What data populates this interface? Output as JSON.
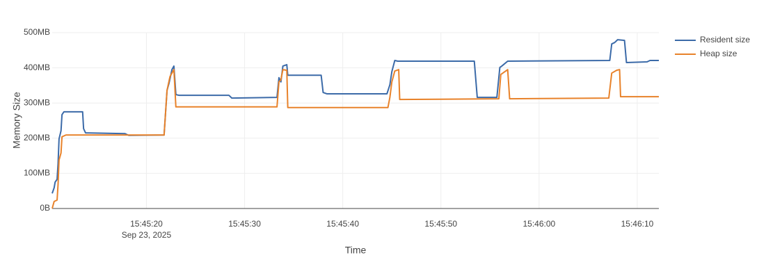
{
  "chart_data": {
    "type": "line",
    "x_label": "Time",
    "y_label": "Memory Size",
    "x_date_label": "Sep 23, 2025",
    "xlim": [
      "15:45:10.4",
      "15:46:12.2"
    ],
    "xticks": [
      "15:45:20",
      "15:45:30",
      "15:45:40",
      "15:45:50",
      "15:46:00",
      "15:46:10"
    ],
    "ylim": [
      0,
      500
    ],
    "yticks": [
      {
        "value": 0,
        "label": "0B"
      },
      {
        "value": 100,
        "label": "100MB"
      },
      {
        "value": 200,
        "label": "200MB"
      },
      {
        "value": 300,
        "label": "300MB"
      },
      {
        "value": 400,
        "label": "400MB"
      },
      {
        "value": 500,
        "label": "500MB"
      }
    ],
    "grid": true,
    "legend": "right",
    "series": [
      {
        "name": "Resident size",
        "color": "#3b6aa8",
        "x": [
          "15:45:10.4",
          "15:45:10.6",
          "15:45:10.7",
          "15:45:10.9",
          "15:45:11.0",
          "15:45:11.1",
          "15:45:11.3",
          "15:45:11.4",
          "15:45:11.6",
          "15:45:13.5",
          "15:45:13.6",
          "15:45:13.8",
          "15:45:17.8",
          "15:45:18.2",
          "15:45:21.8",
          "15:45:22.1",
          "15:45:22.3",
          "15:45:22.6",
          "15:45:22.8",
          "15:45:23.0",
          "15:45:23.3",
          "15:45:28.4",
          "15:45:28.7",
          "15:45:33.3",
          "15:45:33.5",
          "15:45:33.7",
          "15:45:33.9",
          "15:45:34.3",
          "15:45:34.4",
          "15:45:37.8",
          "15:45:38.0",
          "15:45:38.4",
          "15:45:44.5",
          "15:45:44.8",
          "15:45:45.0",
          "15:45:45.3",
          "15:45:45.6",
          "15:45:53.4",
          "15:45:53.7",
          "15:45:55.7",
          "15:45:56.0",
          "15:45:56.2",
          "15:45:56.8",
          "15:46:07.2",
          "15:46:07.4",
          "15:46:07.7",
          "15:46:08.0",
          "15:46:08.7",
          "15:46:08.9",
          "15:46:11.0",
          "15:46:11.3",
          "15:46:12.2"
        ],
        "values": [
          43,
          59,
          75,
          83,
          128,
          198,
          221,
          267,
          275,
          275,
          227,
          215,
          213,
          208,
          209,
          336,
          356,
          395,
          405,
          324,
          322,
          322,
          314,
          316,
          372,
          360,
          405,
          409,
          379,
          379,
          330,
          326,
          326,
          352,
          389,
          421,
          419,
          419,
          316,
          316,
          401,
          405,
          419,
          421,
          468,
          472,
          480,
          478,
          415,
          417,
          421,
          421
        ]
      },
      {
        "name": "Heap size",
        "color": "#e8822a",
        "x": [
          "15:45:10.4",
          "15:45:10.6",
          "15:45:10.9",
          "15:45:11.0",
          "15:45:11.1",
          "15:45:11.3",
          "15:45:11.4",
          "15:45:11.8",
          "15:45:21.8",
          "15:45:22.1",
          "15:45:22.4",
          "15:45:22.8",
          "15:45:23.0",
          "15:45:33.3",
          "15:45:33.5",
          "15:45:33.7",
          "15:45:33.9",
          "15:45:34.3",
          "15:45:34.4",
          "15:45:44.6",
          "15:45:44.8",
          "15:45:45.0",
          "15:45:45.3",
          "15:45:45.7",
          "15:45:45.8",
          "15:45:55.9",
          "15:45:56.1",
          "15:45:56.4",
          "15:45:56.8",
          "15:45:57.0",
          "15:46:07.1",
          "15:46:07.4",
          "15:46:07.9",
          "15:46:08.2",
          "15:46:08.3",
          "15:46:12.2"
        ],
        "values": [
          0,
          20,
          24,
          69,
          138,
          158,
          204,
          209,
          209,
          336,
          375,
          395,
          289,
          289,
          360,
          366,
          395,
          393,
          287,
          287,
          316,
          360,
          391,
          395,
          310,
          312,
          381,
          387,
          395,
          312,
          314,
          385,
          393,
          395,
          318,
          318
        ]
      }
    ]
  }
}
